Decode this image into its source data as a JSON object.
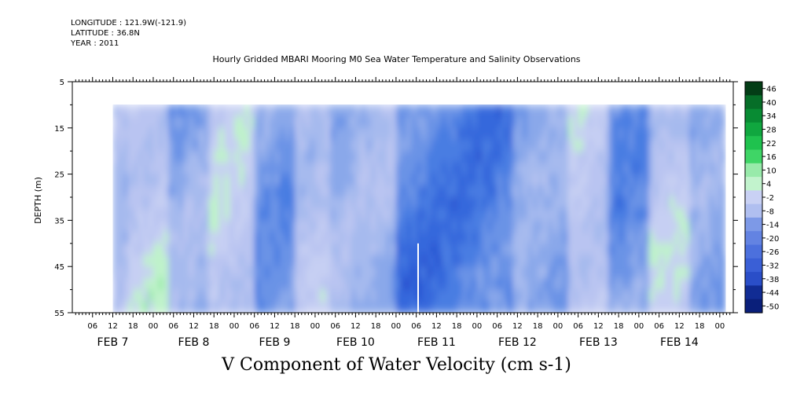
{
  "header": {
    "longitude": "LONGITUDE : 121.9W(-121.9)",
    "latitude": "LATITUDE : 36.8N",
    "year": "YEAR : 2011",
    "title": "Hourly Gridded MBARI Mooring M0 Sea Water Temperature and Salinity Observations"
  },
  "footer": {
    "variable_title": "V Component of Water Velocity (cm s-1)"
  },
  "chart_data": {
    "type": "heatmap",
    "title": "Hourly Gridded MBARI Mooring M0 Sea Water Temperature and Salinity Observations",
    "variable": "V Component of Water Velocity (cm s-1)",
    "ylabel": "DEPTH (m)",
    "y_axis": {
      "min": 5,
      "max": 55,
      "inverted": true,
      "ticks": [
        5,
        15,
        25,
        35,
        45,
        55
      ],
      "ticks_right": [
        10,
        20,
        30,
        40,
        50
      ]
    },
    "x_axis": {
      "start": "2011-02-07T00:00",
      "end": "2011-02-14T04:00",
      "hour_ticks": [
        "06",
        "12",
        "18",
        "00",
        "06",
        "12",
        "18",
        "00",
        "06",
        "12",
        "18",
        "00",
        "06",
        "12",
        "18",
        "00",
        "06",
        "12",
        "18",
        "00",
        "06",
        "12",
        "18",
        "00",
        "06",
        "12",
        "18",
        "00",
        "06",
        "12",
        "18",
        "00"
      ],
      "date_labels": [
        "FEB  7",
        "FEB  8",
        "FEB  9",
        "FEB 10",
        "FEB 11",
        "FEB 12",
        "FEB 13",
        "FEB 14"
      ],
      "date_label_hours": [
        24,
        48,
        72,
        96,
        120,
        144,
        168,
        192
      ]
    },
    "data_extent": {
      "time_start": "2011-02-07T12:00",
      "time_end": "2011-02-14T01:00",
      "depth_min": 10,
      "depth_max": 55
    },
    "colorbar": {
      "min": -50,
      "max": 50,
      "labels": [
        "46",
        "40",
        "34",
        "28",
        "22",
        "16",
        "10",
        "4",
        "-2",
        "-8",
        "-14",
        "-20",
        "-26",
        "-32",
        "-38",
        "-44",
        "-50"
      ],
      "colors": [
        "#0c2a8c",
        "#1a3fc0",
        "#2a5ad6",
        "#3f72e0",
        "#5a88e4",
        "#7a9ee8",
        "#96b0ec",
        "#adc0f0",
        "#bcc8f2",
        "#c8d4f4",
        "#b9f0c5",
        "#8be89e",
        "#5cdc7a",
        "#2fcf5a",
        "#12b844",
        "#0a9a38",
        "#077a2c",
        "#055e22",
        "#04461a"
      ],
      "negative_bins": [
        "#0c2a8c",
        "#1a3fc0",
        "#2a5ad6",
        "#3f72e0",
        "#5a88e4",
        "#7a9ee8",
        "#96b0ec",
        "#adc0f0",
        "#bcc8f2",
        "#c8d4f4"
      ],
      "positive_bins": [
        "#b9f0c5",
        "#8be89e",
        "#5cdc7a",
        "#2fcf5a",
        "#12b844",
        "#0a9a38",
        "#077a2c",
        "#055e22",
        "#04461a"
      ]
    },
    "field_summary": {
      "description_colors": {
        "neg_strong": "#2d5fdc",
        "neg_mid": "#7d9ee8",
        "neg_weak": "#b8c3f0",
        "pos_weak": "#b9f0c5",
        "pos_mid": "#5cdc7a",
        "pos_strong": "#12c24c"
      },
      "bands": [
        {
          "hour_start": 12,
          "hour_end": 16,
          "mean_value": 2
        },
        {
          "hour_start": 16,
          "hour_end": 28,
          "mean_value": 8
        },
        {
          "hour_start": 28,
          "hour_end": 40,
          "mean_value": -6
        },
        {
          "hour_start": 40,
          "hour_end": 54,
          "mean_value": 6
        },
        {
          "hour_start": 54,
          "hour_end": 66,
          "mean_value": -10
        },
        {
          "hour_start": 66,
          "hour_end": 76,
          "mean_value": 4
        },
        {
          "hour_start": 76,
          "hour_end": 96,
          "mean_value": -4
        },
        {
          "hour_start": 96,
          "hour_end": 130,
          "mean_value": -18
        },
        {
          "hour_start": 130,
          "hour_end": 146,
          "mean_value": -8
        },
        {
          "hour_start": 146,
          "hour_end": 158,
          "mean_value": 6
        },
        {
          "hour_start": 158,
          "hour_end": 170,
          "mean_value": -12
        },
        {
          "hour_start": 170,
          "hour_end": 182,
          "mean_value": 6
        },
        {
          "hour_start": 182,
          "hour_end": 194,
          "mean_value": -8
        }
      ]
    }
  }
}
